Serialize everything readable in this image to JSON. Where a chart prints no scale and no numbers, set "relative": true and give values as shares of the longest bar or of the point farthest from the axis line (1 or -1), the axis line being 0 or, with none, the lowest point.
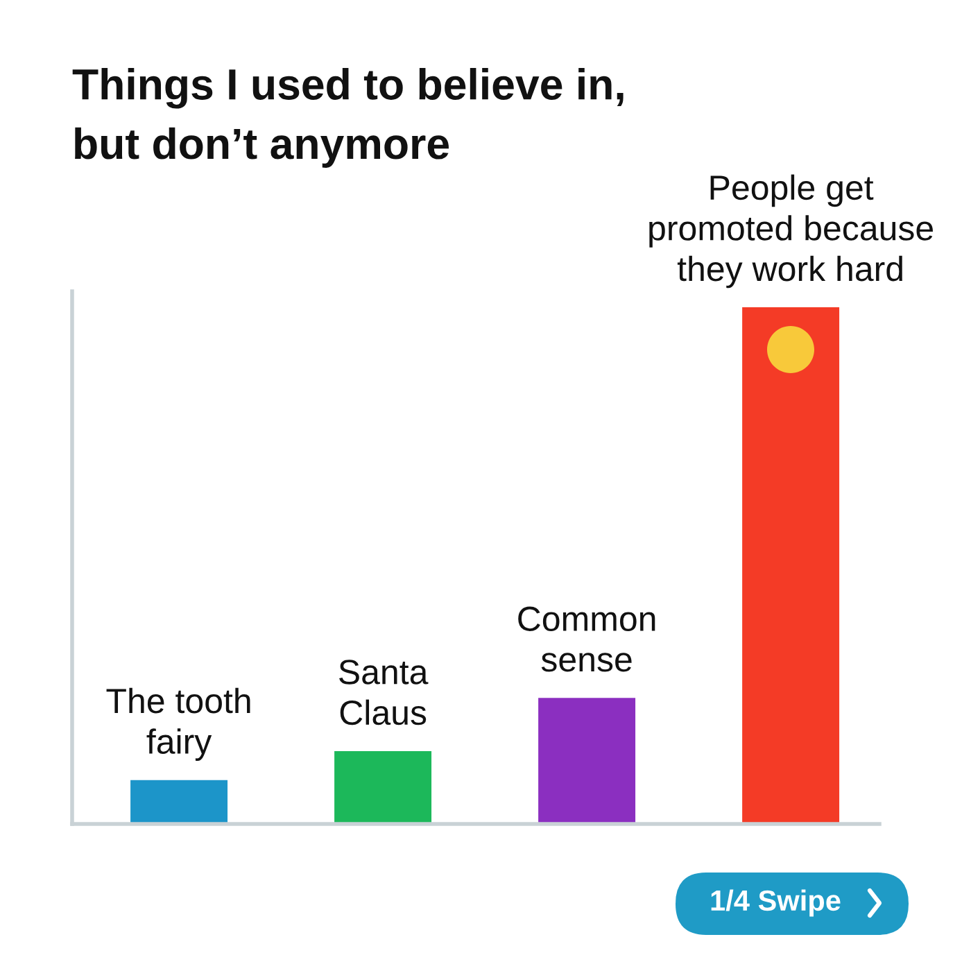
{
  "chart_data": {
    "type": "bar",
    "title": "Things I used to believe in,\nbut don’t anymore",
    "categories": [
      "The tooth\nfairy",
      "Santa\nClaus",
      "Common\nsense",
      "People get\npromoted because\nthey work hard"
    ],
    "values": [
      0.085,
      0.141,
      0.244,
      1
    ],
    "colors": [
      "#1c95c9",
      "#1cb85a",
      "#8b2fc0",
      "#f43b26"
    ],
    "relative": true,
    "annotations": [
      "1/4 Swipe"
    ]
  }
}
